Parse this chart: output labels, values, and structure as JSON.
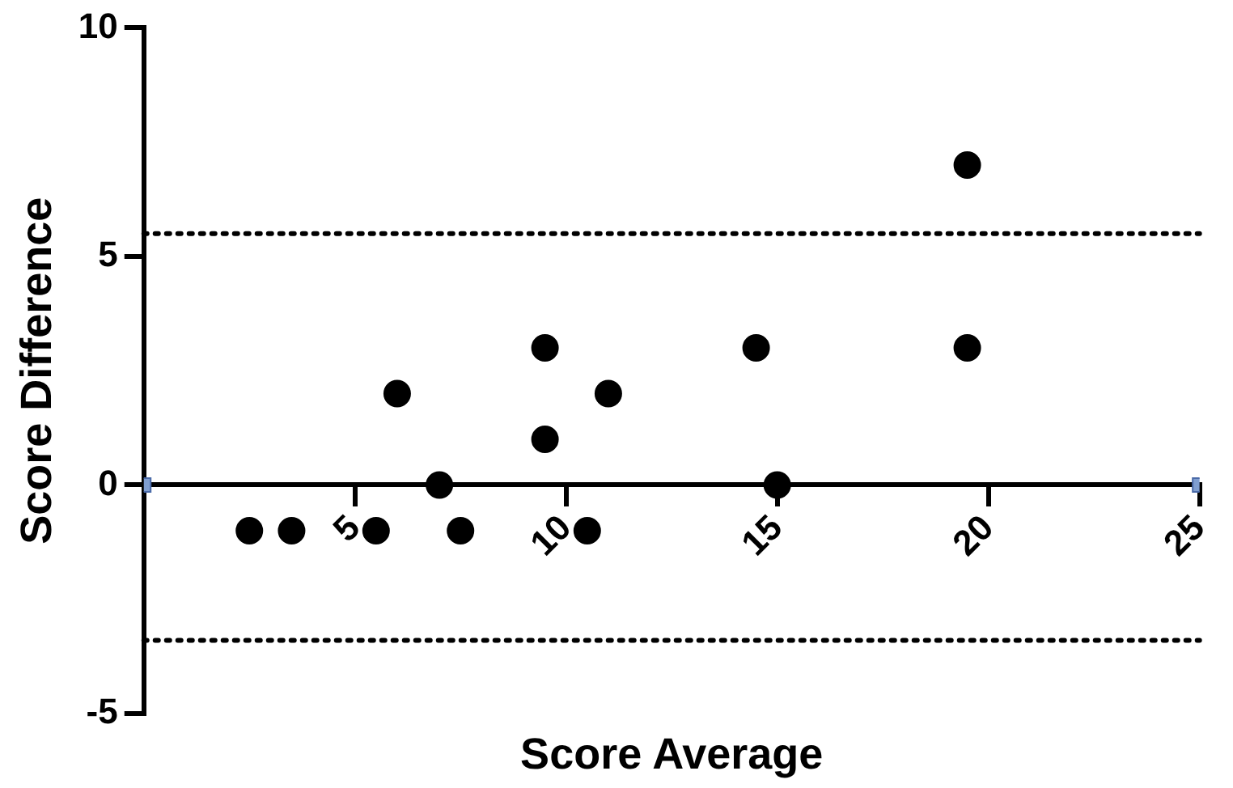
{
  "chart_data": {
    "type": "scatter",
    "xlabel": "Score Average",
    "ylabel": "Score Difference",
    "xlim": [
      0,
      25
    ],
    "xticks": [
      5,
      10,
      15,
      20,
      25
    ],
    "ylim": [
      -5,
      10
    ],
    "yticks": [
      -5,
      0,
      5,
      10
    ],
    "grid": false,
    "legend": false,
    "series": [
      {
        "color": "#000000",
        "marker": "circle",
        "x": [
          2.5,
          3.5,
          5.5,
          6,
          7,
          7.5,
          9.5,
          9.5,
          10.5,
          11,
          14.5,
          15,
          19.5,
          19.5
        ],
        "values": [
          -1,
          -1,
          -1,
          2,
          0,
          -1,
          3,
          1,
          -1,
          2,
          3,
          0,
          7,
          3
        ]
      },
      {
        "color": "#7f9ed0",
        "marker": "square",
        "x": [
          0,
          25
        ],
        "values": [
          0,
          0
        ]
      }
    ],
    "ref_lines": [
      {
        "axis": "y",
        "value": 5.5,
        "line_style": "dotted",
        "color": "#000000"
      },
      {
        "axis": "y",
        "value": -3.4,
        "line_style": "dotted",
        "color": "#000000"
      }
    ]
  }
}
